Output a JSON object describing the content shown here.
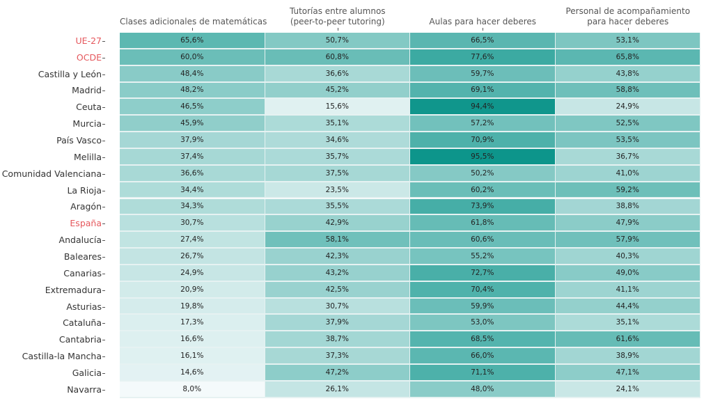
{
  "chart_data": {
    "type": "heatmap",
    "columns": [
      "Clases adicionales de matemáticas",
      "Tutorías entre alumnos\n(peer-to-peer tutoring)",
      "Aulas para hacer deberes",
      "Personal de acompañamiento\npara hacer deberes"
    ],
    "rows": [
      {
        "label": "UE-27",
        "highlight": true,
        "values": [
          "65,6%",
          "50,7%",
          "66,5%",
          "53,1%"
        ]
      },
      {
        "label": "OCDE",
        "highlight": true,
        "values": [
          "60,0%",
          "60,8%",
          "77,6%",
          "65,8%"
        ]
      },
      {
        "label": "Castilla y León",
        "values": [
          "48,4%",
          "36,6%",
          "59,7%",
          "43,8%"
        ]
      },
      {
        "label": "Madrid",
        "values": [
          "48,2%",
          "45,2%",
          "69,1%",
          "58,8%"
        ]
      },
      {
        "label": "Ceuta",
        "values": [
          "46,5%",
          "15,6%",
          "94,4%",
          "24,9%"
        ]
      },
      {
        "label": "Murcia",
        "values": [
          "45,9%",
          "35,1%",
          "57,2%",
          "52,5%"
        ]
      },
      {
        "label": "País Vasco",
        "values": [
          "37,9%",
          "34,6%",
          "70,9%",
          "53,5%"
        ]
      },
      {
        "label": "Melilla",
        "values": [
          "37,4%",
          "35,7%",
          "95,5%",
          "36,7%"
        ]
      },
      {
        "label": "Comunidad Valenciana",
        "values": [
          "36,6%",
          "37,5%",
          "50,2%",
          "41,0%"
        ]
      },
      {
        "label": "La Rioja",
        "values": [
          "34,4%",
          "23,5%",
          "60,2%",
          "59,2%"
        ]
      },
      {
        "label": "Aragón",
        "values": [
          "34,3%",
          "35,5%",
          "73,9%",
          "38,8%"
        ]
      },
      {
        "label": "España",
        "highlight": true,
        "values": [
          "30,7%",
          "42,9%",
          "61,8%",
          "47,9%"
        ]
      },
      {
        "label": "Andalucía",
        "values": [
          "27,4%",
          "58,1%",
          "60,6%",
          "57,9%"
        ]
      },
      {
        "label": "Baleares",
        "values": [
          "26,7%",
          "42,3%",
          "55,2%",
          "40,3%"
        ]
      },
      {
        "label": "Canarias",
        "values": [
          "24,9%",
          "43,2%",
          "72,7%",
          "49,0%"
        ]
      },
      {
        "label": "Extremadura",
        "values": [
          "20,9%",
          "42,5%",
          "70,4%",
          "41,1%"
        ]
      },
      {
        "label": "Asturias",
        "values": [
          "19,8%",
          "30,7%",
          "59,9%",
          "44,4%"
        ]
      },
      {
        "label": "Cataluña",
        "values": [
          "17,3%",
          "37,9%",
          "53,0%",
          "35,1%"
        ]
      },
      {
        "label": "Cantabria",
        "values": [
          "16,6%",
          "38,7%",
          "68,5%",
          "61,6%"
        ]
      },
      {
        "label": "Castilla-la Mancha",
        "values": [
          "16,1%",
          "37,3%",
          "66,0%",
          "38,9%"
        ]
      },
      {
        "label": "Galicia",
        "values": [
          "14,6%",
          "47,2%",
          "71,1%",
          "47,1%"
        ]
      },
      {
        "label": "Navarra",
        "values": [
          "8,0%",
          "26,1%",
          "48,0%",
          "24,1%"
        ]
      }
    ],
    "color_scale": {
      "low": "#f4fafb",
      "high": "#0d958b",
      "domain": [
        8.0,
        95.5
      ]
    },
    "highlight_color": "#e5575c",
    "grid": false,
    "legend": "none"
  }
}
